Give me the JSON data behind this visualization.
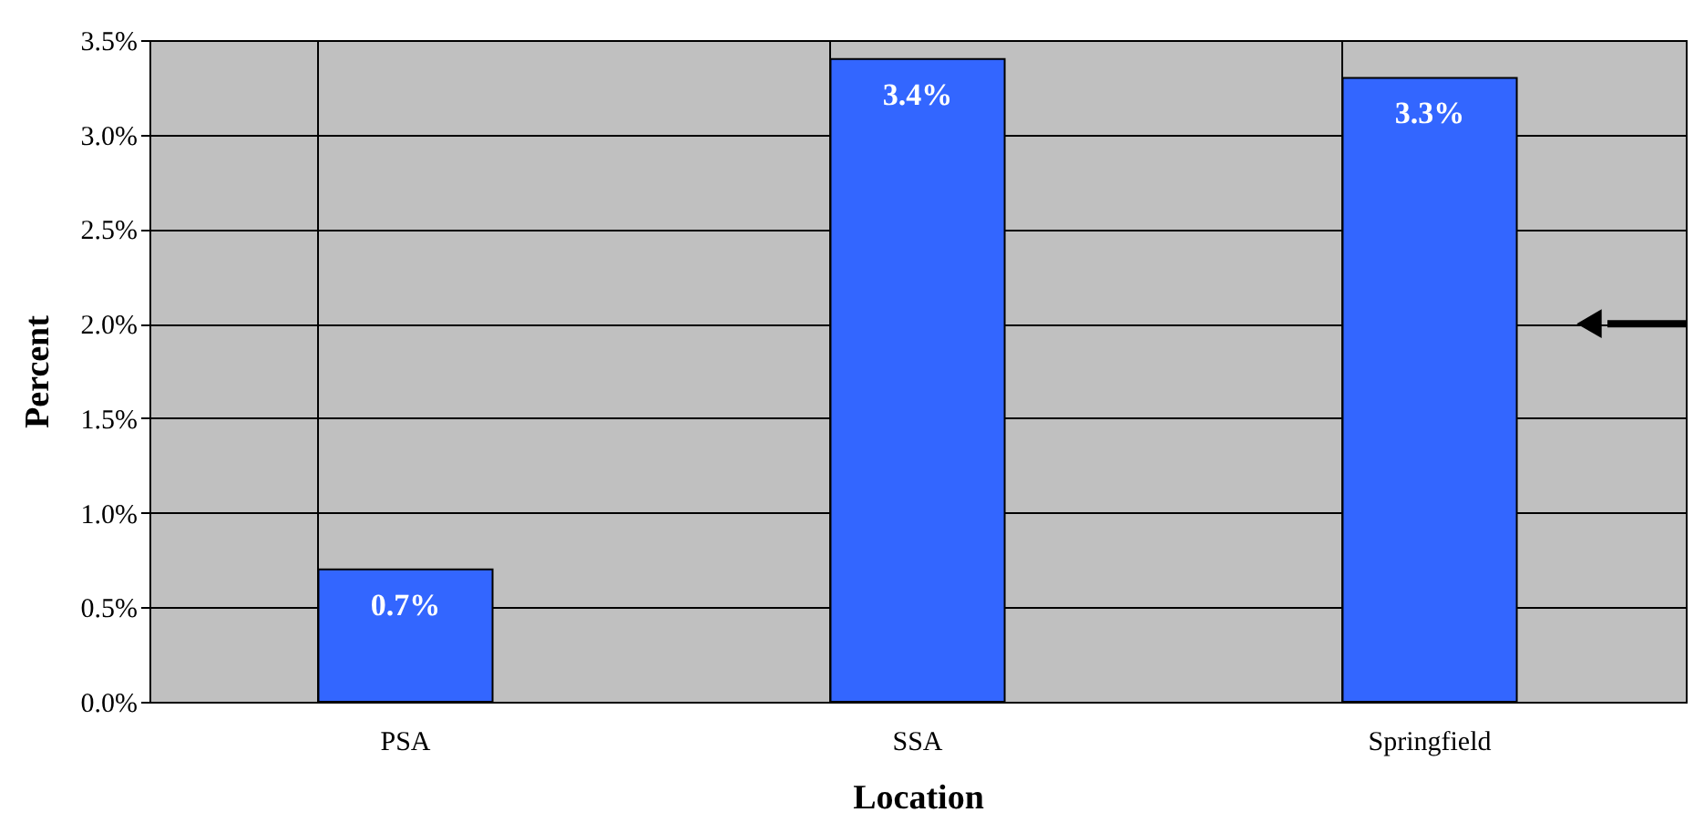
{
  "chart_data": {
    "type": "bar",
    "xlabel": "Location",
    "ylabel": "Percent",
    "categories": [
      "PSA",
      "SSA",
      "Springfield"
    ],
    "values": [
      0.7,
      3.4,
      3.3
    ],
    "color": "#3366ff",
    "value_labels": [
      "0.7%",
      "3.4%",
      "3.3%"
    ],
    "ylim": [
      0,
      3.5
    ],
    "yticks": [
      {
        "value": 0,
        "label": "0.0%"
      },
      {
        "value": 0.5,
        "label": "0.5%"
      },
      {
        "value": 1,
        "label": "1.0%"
      },
      {
        "value": 1.5,
        "label": "1.5%"
      },
      {
        "value": 2,
        "label": "2.0%"
      },
      {
        "value": 2.5,
        "label": "2.5%"
      },
      {
        "value": 3,
        "label": "3.0%"
      },
      {
        "value": 3.5,
        "label": "3.5%"
      }
    ],
    "grid": true
  }
}
